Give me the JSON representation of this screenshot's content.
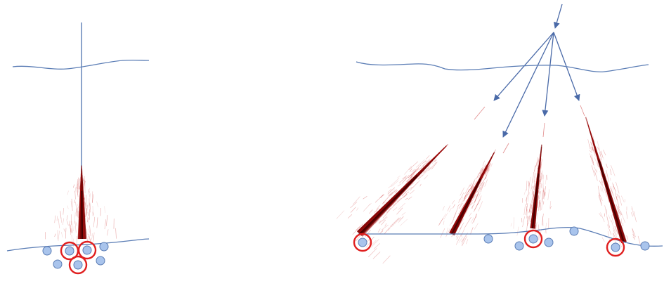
{
  "colors": {
    "line": "#5b7db5",
    "arrow": "#4a6aa8",
    "shower_core": "#7a0000",
    "shower_halo": "#c41a1a",
    "detector_fill": "#a9c4ec",
    "detector_stroke": "#5b7db5",
    "hit_ring": "#e02020",
    "background": "#ffffff"
  },
  "panels": [
    {
      "name": "vertical-shower-panel",
      "shower_count": 1,
      "detectors_total": 7,
      "detectors_hit": 3
    },
    {
      "name": "inclined-showers-panel",
      "shower_count": 4,
      "detectors_total": 7,
      "detectors_hit": 3
    }
  ]
}
